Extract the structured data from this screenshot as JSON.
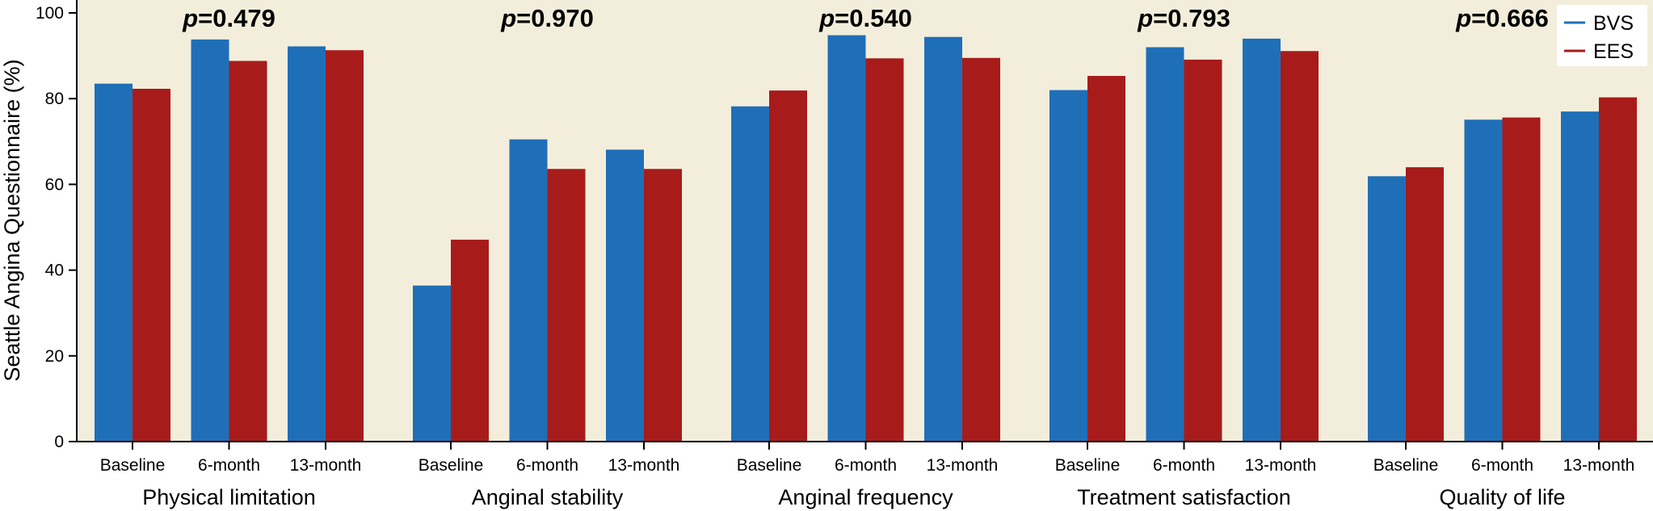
{
  "chart_data": {
    "type": "bar",
    "ylabel": "Seattle Angina Questionnaire (%)",
    "xlabel": "",
    "ylim": [
      0,
      100
    ],
    "yticks": [
      0,
      20,
      40,
      60,
      80,
      100
    ],
    "legend": {
      "placement": "top-right",
      "entries": [
        "BVS",
        "EES"
      ]
    },
    "colors": {
      "BVS": "#1f6fb8",
      "EES": "#a81b1b",
      "background": "#f3eedb"
    },
    "timepoints": [
      "Baseline",
      "6-month",
      "13-month"
    ],
    "groups": [
      {
        "name": "Physical limitation",
        "p_prefix": "p",
        "p_value": "=0.479",
        "BVS": [
          83.5,
          93.8,
          92.2
        ],
        "EES": [
          82.3,
          88.8,
          91.3
        ]
      },
      {
        "name": "Anginal stability",
        "p_prefix": "p",
        "p_value": "=0.970",
        "BVS": [
          36.4,
          70.5,
          68.1
        ],
        "EES": [
          47.1,
          63.6,
          63.6
        ]
      },
      {
        "name": "Anginal frequency",
        "p_prefix": "p",
        "p_value": "=0.540",
        "BVS": [
          78.2,
          94.8,
          94.4
        ],
        "EES": [
          81.9,
          89.4,
          89.5
        ]
      },
      {
        "name": "Treatment satisfaction",
        "p_prefix": "p",
        "p_value": "=0.793",
        "BVS": [
          82.0,
          92.0,
          94.0
        ],
        "EES": [
          85.3,
          89.1,
          91.1
        ]
      },
      {
        "name": "Quality of life",
        "p_prefix": "p",
        "p_value": "=0.666",
        "BVS": [
          61.9,
          75.1,
          77.0
        ],
        "EES": [
          64.0,
          75.6,
          80.3
        ]
      }
    ]
  }
}
